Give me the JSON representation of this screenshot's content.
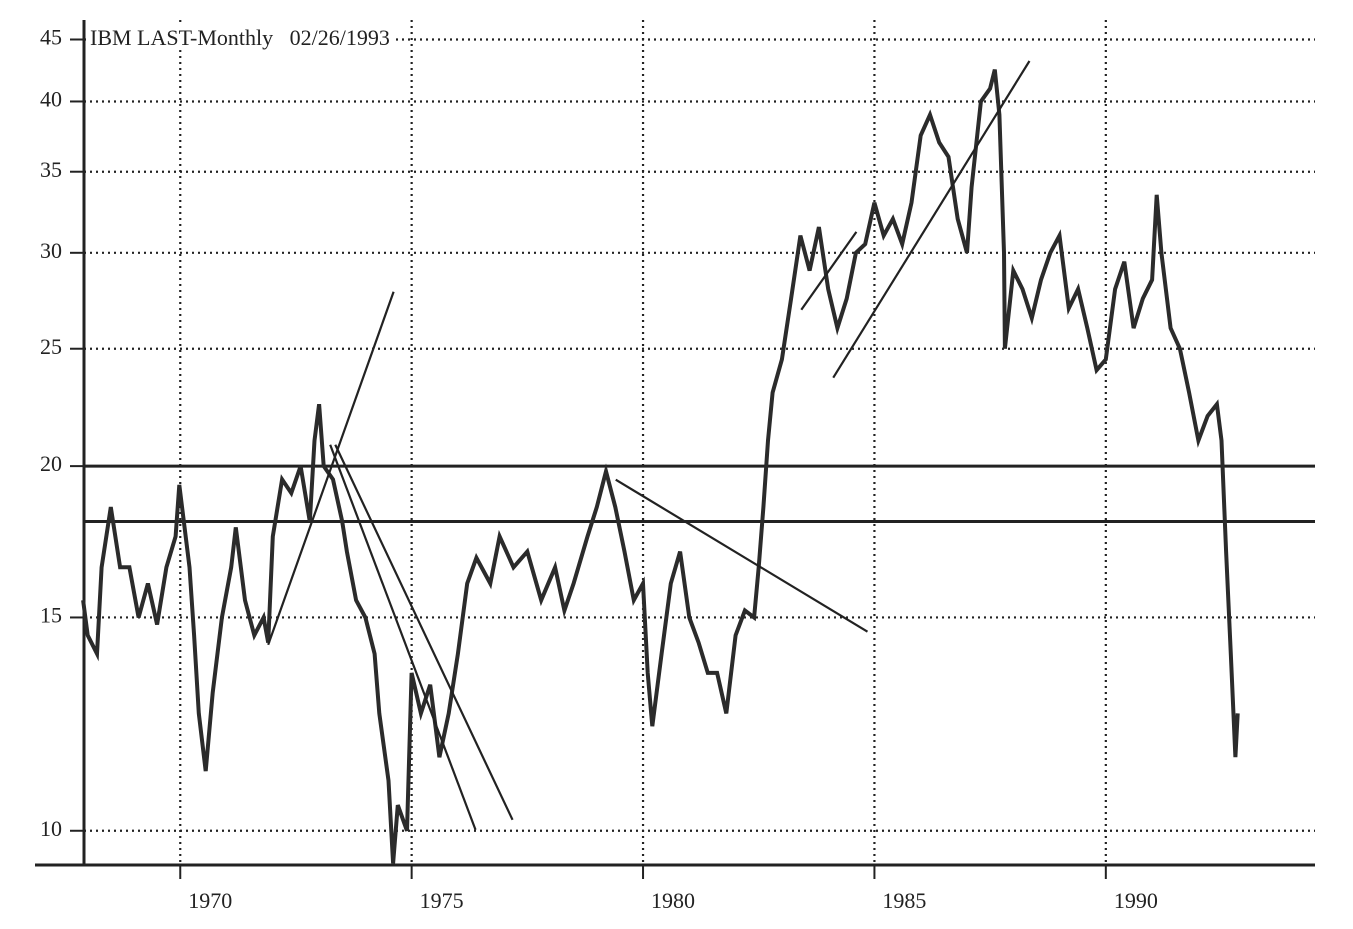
{
  "chart_data": {
    "type": "line",
    "title": "IBM LAST-Monthly   02/26/1993",
    "log_scale_y": true,
    "grid": true,
    "xlim": [
      1967.92,
      1994.52
    ],
    "ylim": [
      9.37,
      46.7
    ],
    "xticks": [
      1970,
      1975,
      1980,
      1985,
      1990
    ],
    "yticks": [
      10,
      15,
      20,
      25,
      30,
      35,
      40,
      45
    ],
    "reference_lines": [
      20,
      18
    ],
    "trend_lines": [
      {
        "x": [
          1971.9,
          1974.61
        ],
        "y": [
          14.24,
          27.86
        ]
      },
      {
        "x": [
          1973.24,
          1976.38
        ],
        "y": [
          20.83,
          10.02
        ]
      },
      {
        "x": [
          1973.35,
          1977.18
        ],
        "y": [
          20.83,
          10.21
        ]
      },
      {
        "x": [
          1979.41,
          1984.85
        ],
        "y": [
          19.49,
          14.6
        ]
      },
      {
        "x": [
          1983.42,
          1984.61
        ],
        "y": [
          26.92,
          31.22
        ]
      },
      {
        "x": [
          1984.11,
          1988.35
        ],
        "y": [
          23.66,
          43.2
        ]
      }
    ],
    "series": [
      {
        "color": "#2b2b2b",
        "x": [
          1967.9,
          1968.0,
          1968.2,
          1968.3,
          1968.5,
          1968.7,
          1968.9,
          1969.1,
          1969.3,
          1969.5,
          1969.7,
          1969.9,
          1969.98,
          1970.2,
          1970.3,
          1970.4,
          1970.55,
          1970.7,
          1970.9,
          1971.1,
          1971.2,
          1971.4,
          1971.6,
          1971.8,
          1971.9,
          1972.0,
          1972.2,
          1972.4,
          1972.6,
          1972.8,
          1972.9,
          1973.0,
          1973.1,
          1973.3,
          1973.5,
          1973.6,
          1973.8,
          1974.0,
          1974.2,
          1974.3,
          1974.5,
          1974.6,
          1974.7,
          1974.9,
          1975.0,
          1975.2,
          1975.4,
          1975.6,
          1975.8,
          1976.0,
          1976.2,
          1976.4,
          1976.7,
          1976.9,
          1977.2,
          1977.5,
          1977.8,
          1978.1,
          1978.3,
          1978.5,
          1978.8,
          1979.0,
          1979.2,
          1979.4,
          1979.6,
          1979.8,
          1980.0,
          1980.1,
          1980.2,
          1980.4,
          1980.6,
          1980.8,
          1981.0,
          1981.2,
          1981.4,
          1981.6,
          1981.8,
          1982.0,
          1982.2,
          1982.4,
          1982.5,
          1982.6,
          1982.7,
          1982.8,
          1983.0,
          1983.2,
          1983.4,
          1983.6,
          1983.8,
          1984.0,
          1984.2,
          1984.4,
          1984.6,
          1984.8,
          1985.0,
          1985.2,
          1985.4,
          1985.6,
          1985.8,
          1986.0,
          1986.2,
          1986.4,
          1986.6,
          1986.8,
          1987.0,
          1987.1,
          1987.3,
          1987.5,
          1987.6,
          1987.7,
          1987.8,
          1987.82,
          1988.0,
          1988.2,
          1988.4,
          1988.6,
          1988.8,
          1989.0,
          1989.2,
          1989.4,
          1989.6,
          1989.8,
          1990.0,
          1990.2,
          1990.4,
          1990.6,
          1990.8,
          1991.0,
          1991.1,
          1991.2,
          1991.4,
          1991.6,
          1991.8,
          1992.0,
          1992.2,
          1992.4,
          1992.5,
          1992.6,
          1992.7,
          1992.8,
          1992.85
        ],
        "values": [
          15.5,
          14.5,
          14,
          16.5,
          18.5,
          16.5,
          16.5,
          15,
          16,
          14.8,
          16.5,
          17.5,
          19.3,
          16.5,
          14.5,
          12.5,
          11.2,
          13,
          15,
          16.5,
          17.8,
          15.5,
          14.5,
          15,
          14.3,
          17.5,
          19.5,
          19,
          20,
          18,
          21,
          22.5,
          20,
          19.5,
          18,
          17,
          15.5,
          15,
          14,
          12.5,
          11,
          9.4,
          10.5,
          10,
          13.5,
          12.5,
          13.2,
          11.5,
          12.5,
          14,
          16,
          16.8,
          16,
          17.5,
          16.5,
          17,
          15.5,
          16.5,
          15.2,
          16,
          17.5,
          18.5,
          19.8,
          18.5,
          17,
          15.5,
          16,
          13.5,
          12.2,
          14,
          16,
          17,
          15,
          14.3,
          13.5,
          13.5,
          12.5,
          14.5,
          15.2,
          15,
          16.5,
          18.5,
          21,
          23,
          24.5,
          27.5,
          31,
          29,
          31.5,
          28,
          26,
          27.5,
          30,
          30.5,
          33,
          31,
          32,
          30.5,
          33,
          37.5,
          39,
          37,
          36,
          32,
          30,
          34,
          40,
          41,
          42.5,
          39,
          30,
          25,
          29,
          28,
          26.5,
          28.5,
          30,
          31,
          27,
          28,
          26,
          24,
          24.5,
          28,
          29.5,
          26,
          27.5,
          28.5,
          33.5,
          30,
          26,
          25,
          23,
          21,
          22,
          22.5,
          21,
          17,
          14,
          11.5,
          12.5
        ]
      }
    ]
  }
}
